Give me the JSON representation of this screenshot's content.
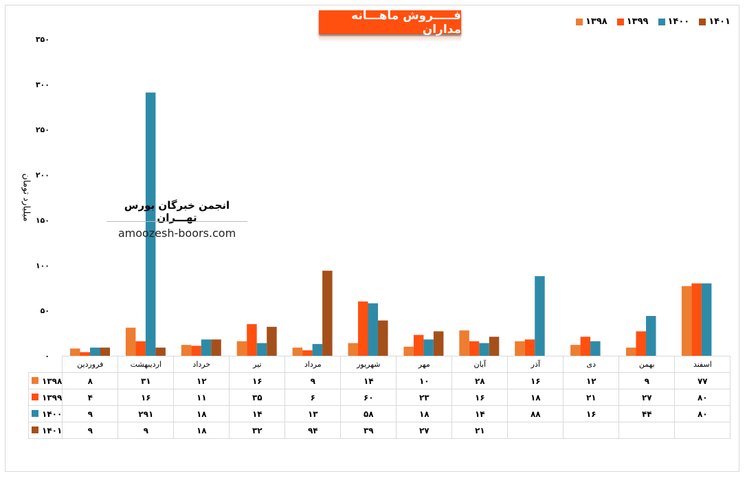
{
  "chart_data": {
    "type": "bar",
    "title": "فـــــروش ماهـــانه مداران",
    "ylabel": "میلیارد تومان",
    "ylim": [
      0,
      350
    ],
    "yticks": [
      0,
      50,
      100,
      150,
      200,
      250,
      300,
      350
    ],
    "ytick_labels": [
      "۰",
      "۵۰",
      "۱۰۰",
      "۱۵۰",
      "۲۰۰",
      "۲۵۰",
      "۳۰۰",
      "۳۵۰"
    ],
    "grid": false,
    "legend": "top-right",
    "categories": [
      "فروردین",
      "اردیبهشت",
      "خرداد",
      "تیر",
      "مرداد",
      "شهریور",
      "مهر",
      "آبان",
      "آذر",
      "دی",
      "بهمن",
      "اسفند"
    ],
    "series": [
      {
        "name": "۱۳۹۸",
        "color": "#ED7D31",
        "values": [
          8,
          31,
          12,
          16,
          9,
          14,
          10,
          28,
          16,
          12,
          9,
          77
        ]
      },
      {
        "name": "۱۳۹۹",
        "color": "#FF5010",
        "values": [
          4,
          16,
          11,
          35,
          6,
          60,
          23,
          16,
          18,
          21,
          27,
          80
        ]
      },
      {
        "name": "۱۴۰۰",
        "color": "#2E8BA8",
        "values": [
          9,
          291,
          18,
          14,
          13,
          58,
          18,
          14,
          88,
          16,
          44,
          80
        ]
      },
      {
        "name": "۱۴۰۱",
        "color": "#A5501A",
        "values": [
          9,
          9,
          18,
          32,
          94,
          39,
          27,
          21,
          null,
          null,
          null,
          null
        ]
      }
    ]
  },
  "watermark": {
    "name": "انجمن خبرگان بورس تهـــران",
    "site": "amoozesh-boors.com"
  }
}
